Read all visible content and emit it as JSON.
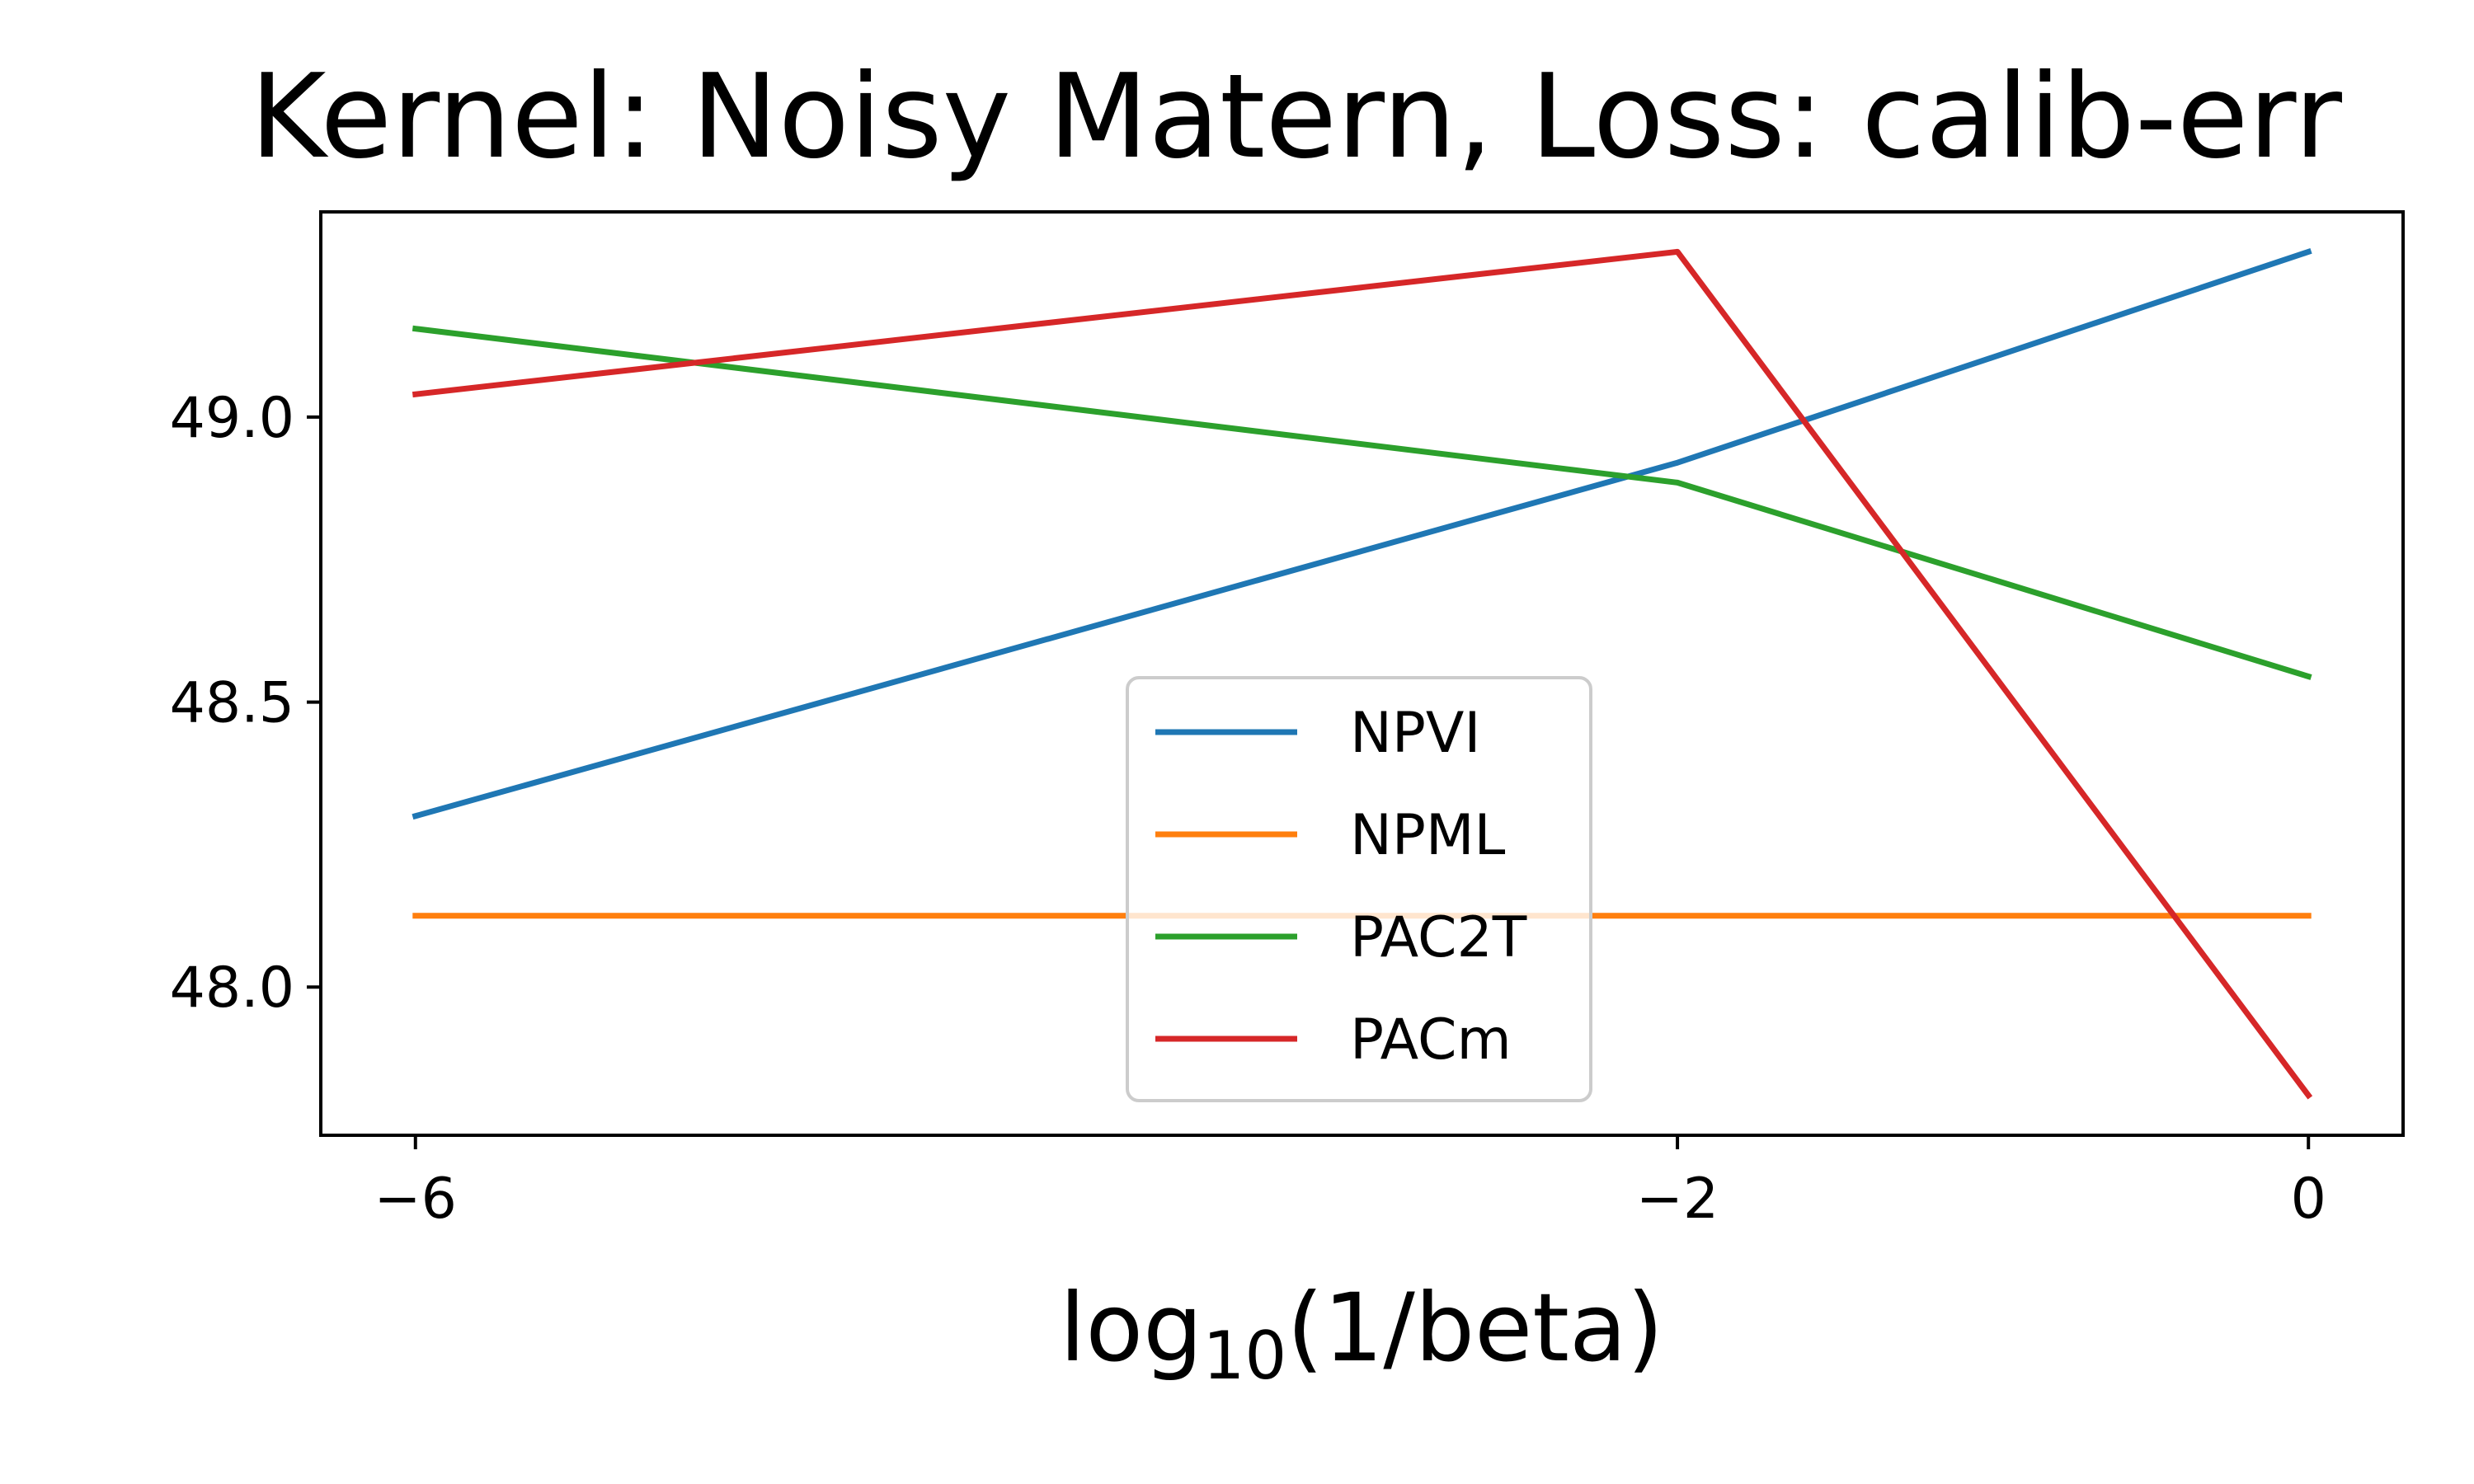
{
  "chart_data": {
    "type": "line",
    "title": "Kernel: Noisy Matern, Loss: calib-err",
    "xlabel": "log10(1/beta)",
    "xlabel_base": "log",
    "xlabel_sub": "10",
    "xlabel_rest": "(1/beta)",
    "ylabel": "",
    "x": [
      -6,
      -2,
      0
    ],
    "xlim": [
      -6.3,
      0.3
    ],
    "ylim": [
      47.74,
      49.36
    ],
    "xticks": [
      -6,
      -2,
      0
    ],
    "xtick_labels": [
      "−6",
      "−2",
      "0"
    ],
    "yticks": [
      48.0,
      48.5,
      49.0
    ],
    "ytick_labels": [
      "48.0",
      "48.5",
      "49.0"
    ],
    "grid": false,
    "legend_position": "lower-center",
    "series": [
      {
        "name": "NPVI",
        "color": "#1f77b4",
        "values": [
          48.3,
          48.92,
          49.29
        ]
      },
      {
        "name": "NPML",
        "color": "#ff7f0e",
        "values": [
          48.125,
          48.125,
          48.125
        ]
      },
      {
        "name": "PAC2T",
        "color": "#2ca02c",
        "values": [
          49.155,
          48.885,
          48.545
        ]
      },
      {
        "name": "PACm",
        "color": "#d62728",
        "values": [
          49.04,
          49.29,
          47.81
        ]
      }
    ]
  }
}
